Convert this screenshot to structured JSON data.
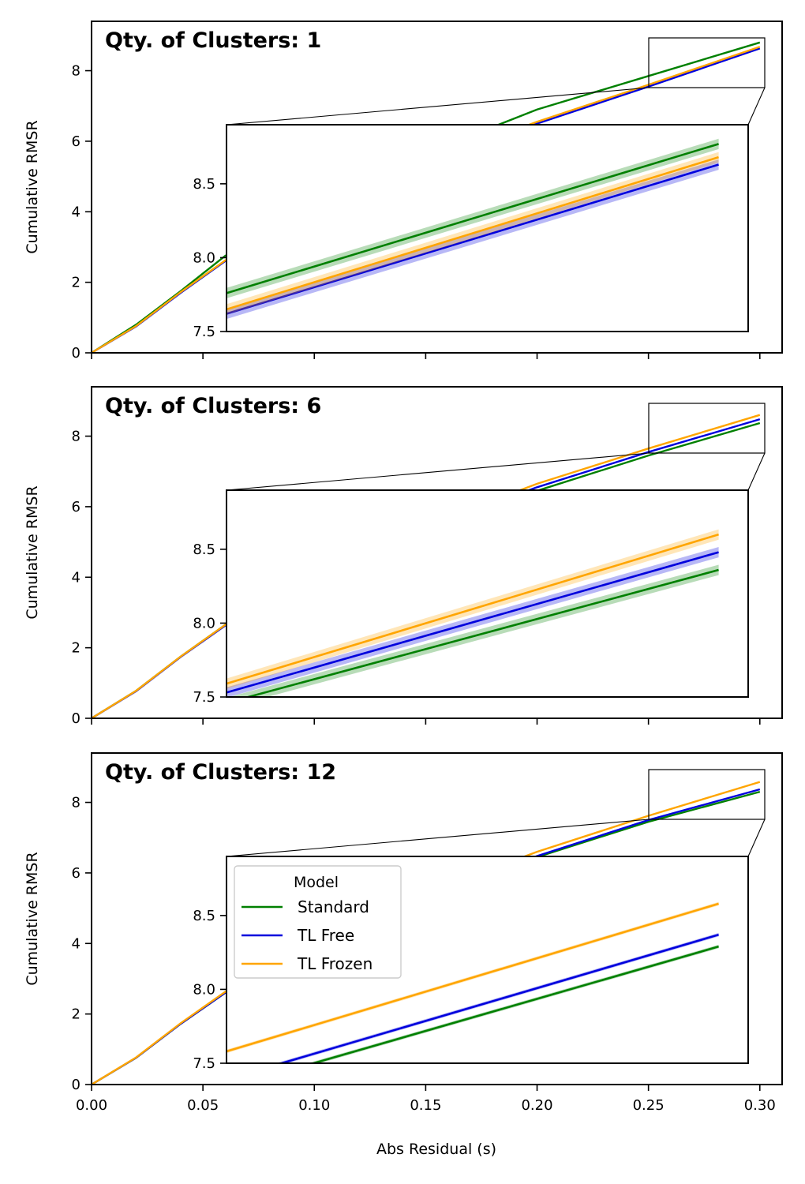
{
  "xlabel": "Abs Residual (s)",
  "ylabel": "Cumulative RMSR",
  "legend": {
    "title": "Model",
    "entries": [
      {
        "label": "Standard",
        "color": "#008000"
      },
      {
        "label": "TL Free",
        "color": "#0000dd"
      },
      {
        "label": "TL Frozen",
        "color": "#ffa500"
      }
    ]
  },
  "chart_data": [
    {
      "type": "line",
      "title": "Qty. of Clusters: 1",
      "xlabel": "",
      "ylabel": "Cumulative RMSR",
      "xlim": [
        0.0,
        0.31
      ],
      "ylim": [
        0,
        9.4
      ],
      "xticks": [],
      "yticks": [
        "0",
        "2",
        "4",
        "6",
        "8"
      ],
      "x": [
        0.0,
        0.02,
        0.04,
        0.06,
        0.1,
        0.15,
        0.2,
        0.25,
        0.3
      ],
      "series": [
        {
          "name": "Standard",
          "color": "#008000",
          "values": [
            0.0,
            0.8,
            1.75,
            2.75,
            4.15,
            5.65,
            6.9,
            7.85,
            8.8
          ]
        },
        {
          "name": "TL Free",
          "color": "#0000dd",
          "values": [
            0.0,
            0.75,
            1.7,
            2.6,
            3.95,
            5.35,
            6.5,
            7.55,
            8.63
          ]
        },
        {
          "name": "TL Frozen",
          "color": "#ffa500",
          "values": [
            0.0,
            0.76,
            1.72,
            2.62,
            3.98,
            5.38,
            6.55,
            7.6,
            8.68
          ]
        }
      ],
      "inset": {
        "xlim": [
          0.25,
          0.303
        ],
        "ylim": [
          7.5,
          8.9
        ],
        "yticks": [
          "7.5",
          "8.0",
          "8.5"
        ],
        "x": [
          0.25,
          0.3
        ],
        "series": [
          {
            "name": "Standard",
            "values": [
              7.76,
              8.77
            ]
          },
          {
            "name": "TL Free",
            "values": [
              7.62,
              8.63
            ]
          },
          {
            "name": "TL Frozen",
            "values": [
              7.65,
              8.68
            ]
          }
        ]
      }
    },
    {
      "type": "line",
      "title": "Qty. of Clusters: 6",
      "xlabel": "",
      "ylabel": "Cumulative RMSR",
      "xlim": [
        0.0,
        0.31
      ],
      "ylim": [
        0,
        9.4
      ],
      "xticks": [],
      "yticks": [
        "0",
        "2",
        "4",
        "6",
        "8"
      ],
      "x": [
        0.0,
        0.02,
        0.04,
        0.06,
        0.1,
        0.15,
        0.2,
        0.25,
        0.3
      ],
      "series": [
        {
          "name": "Standard",
          "color": "#008000",
          "values": [
            0.0,
            0.78,
            1.75,
            2.65,
            4.0,
            5.35,
            6.45,
            7.45,
            8.37
          ]
        },
        {
          "name": "TL Free",
          "color": "#0000dd",
          "values": [
            0.0,
            0.77,
            1.74,
            2.63,
            4.0,
            5.4,
            6.55,
            7.55,
            8.48
          ]
        },
        {
          "name": "TL Frozen",
          "color": "#ffa500",
          "values": [
            0.0,
            0.78,
            1.75,
            2.65,
            4.05,
            5.45,
            6.65,
            7.65,
            8.6
          ]
        }
      ],
      "inset": {
        "xlim": [
          0.25,
          0.303
        ],
        "ylim": [
          7.5,
          8.9
        ],
        "yticks": [
          "7.5",
          "8.0",
          "8.5"
        ],
        "x": [
          0.25,
          0.3
        ],
        "series": [
          {
            "name": "Standard",
            "values": [
              7.46,
              8.36
            ]
          },
          {
            "name": "TL Free",
            "values": [
              7.53,
              8.48
            ]
          },
          {
            "name": "TL Frozen",
            "values": [
              7.59,
              8.6
            ]
          }
        ]
      }
    },
    {
      "type": "line",
      "title": "Qty. of Clusters: 12",
      "xlabel": "Abs Residual (s)",
      "ylabel": "Cumulative RMSR",
      "xlim": [
        0.0,
        0.31
      ],
      "ylim": [
        0,
        9.4
      ],
      "xticks": [
        "0.00",
        "0.05",
        "0.10",
        "0.15",
        "0.20",
        "0.25",
        "0.30"
      ],
      "yticks": [
        "0",
        "2",
        "4",
        "6",
        "8"
      ],
      "x": [
        0.0,
        0.02,
        0.04,
        0.06,
        0.1,
        0.15,
        0.2,
        0.25,
        0.3
      ],
      "series": [
        {
          "name": "Standard",
          "color": "#008000",
          "values": [
            0.0,
            0.76,
            1.72,
            2.6,
            3.95,
            5.3,
            6.45,
            7.45,
            8.3
          ]
        },
        {
          "name": "TL Free",
          "color": "#0000dd",
          "values": [
            0.0,
            0.76,
            1.72,
            2.6,
            3.96,
            5.33,
            6.48,
            7.5,
            8.37
          ]
        },
        {
          "name": "TL Frozen",
          "color": "#ffa500",
          "values": [
            0.0,
            0.77,
            1.74,
            2.63,
            4.02,
            5.42,
            6.6,
            7.62,
            8.58
          ]
        }
      ],
      "inset": {
        "xlim": [
          0.25,
          0.303
        ],
        "ylim": [
          7.5,
          8.9
        ],
        "yticks": [
          "7.5",
          "8.0",
          "8.5"
        ],
        "x": [
          0.25,
          0.3
        ],
        "series": [
          {
            "name": "Standard",
            "values": [
              7.33,
              8.29
            ]
          },
          {
            "name": "TL Free",
            "values": [
              7.39,
              8.37
            ]
          },
          {
            "name": "TL Frozen",
            "values": [
              7.58,
              8.58
            ]
          }
        ]
      }
    }
  ]
}
